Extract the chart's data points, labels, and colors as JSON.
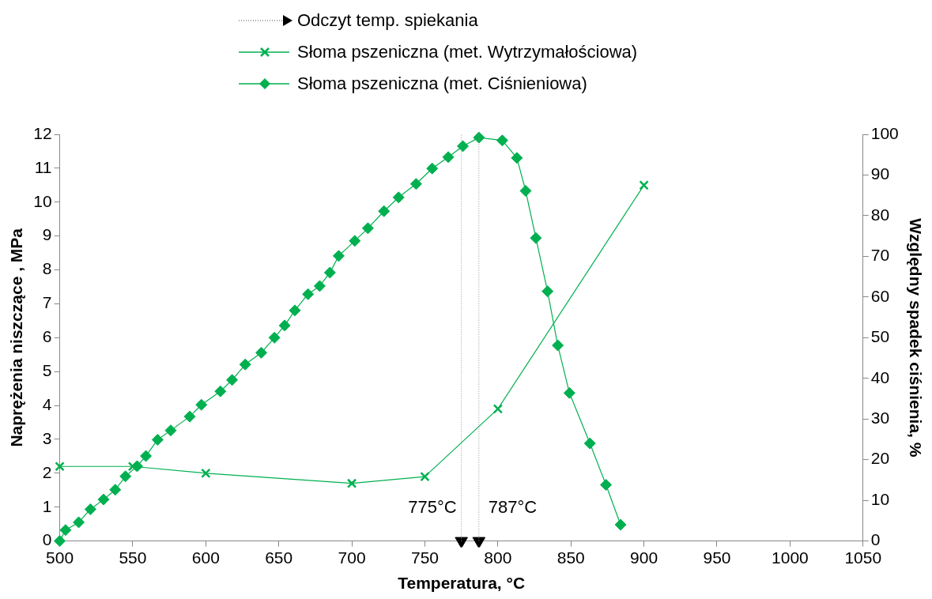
{
  "chart_data": {
    "type": "line",
    "xlabel": "Temperatura, °C",
    "ylabel": "Naprężenia niszczące , MPa",
    "y2label": "Względny spadek ciśnienia, %",
    "xlim": [
      500,
      1050
    ],
    "xticks": [
      500,
      550,
      600,
      650,
      700,
      750,
      800,
      850,
      900,
      950,
      1000,
      1050
    ],
    "ylim": [
      0,
      12
    ],
    "yticks": [
      0,
      1,
      2,
      3,
      4,
      5,
      6,
      7,
      8,
      9,
      10,
      11,
      12
    ],
    "y2lim": [
      0,
      100
    ],
    "y2ticks": [
      0,
      10,
      20,
      30,
      40,
      50,
      60,
      70,
      80,
      90,
      100
    ],
    "grid": false,
    "legend": "top",
    "series": [
      {
        "name": "Odczyt temp. spiekania",
        "type": "scatter",
        "color": "#000000",
        "marker": "triangle",
        "line_style": "dotted",
        "x": [
          775,
          787
        ],
        "values": [
          0,
          0
        ]
      },
      {
        "name": "Słoma pszeniczna (met. Wytrzymałościowa)",
        "color": "#00b050",
        "marker": "cross",
        "x": [
          500,
          550,
          600,
          700,
          750,
          800,
          900
        ],
        "values": [
          2.2,
          2.2,
          2.0,
          1.7,
          1.9,
          3.9,
          10.5
        ]
      },
      {
        "name": "Słoma pszeniczna (met. Ciśnieniowa)",
        "axis": "y2",
        "color": "#00b050",
        "marker": "diamond",
        "x": [
          500,
          504,
          513,
          521,
          530,
          538,
          545,
          553,
          559,
          567,
          576,
          589,
          597,
          610,
          618,
          627,
          638,
          647,
          654,
          661,
          670,
          678,
          685,
          691,
          702,
          711,
          722,
          732,
          744,
          755,
          766,
          776,
          787,
          803,
          813,
          819,
          826,
          834,
          841,
          849,
          863,
          874,
          884
        ],
        "values": [
          0,
          2.7,
          4.6,
          7.8,
          10.2,
          12.6,
          15.9,
          18.4,
          20.9,
          24.9,
          27.2,
          30.6,
          33.5,
          36.8,
          39.6,
          43.4,
          46.3,
          50.0,
          53.0,
          56.7,
          60.7,
          62.7,
          66.0,
          70.1,
          73.8,
          76.9,
          81.1,
          84.5,
          87.8,
          91.6,
          94.4,
          97.1,
          99.2,
          98.5,
          94.2,
          86.1,
          74.5,
          61.4,
          48.1,
          36.4,
          24.0,
          13.8,
          4.0
        ]
      }
    ],
    "ref_lines": [
      {
        "axis": "x",
        "value": 775,
        "label": "775°C",
        "color": "#909090",
        "line_style": "dotted"
      },
      {
        "axis": "x",
        "value": 787,
        "label": "787°C",
        "color": "#909090",
        "line_style": "dotted"
      }
    ]
  }
}
